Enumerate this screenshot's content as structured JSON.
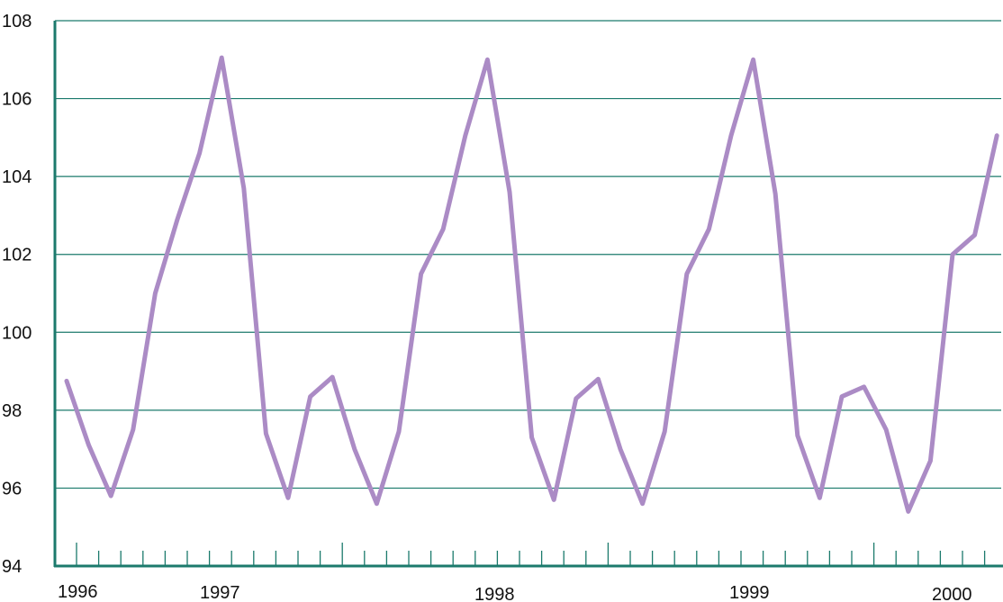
{
  "chart_data": {
    "type": "line",
    "title": "",
    "xlabel": "",
    "ylabel": "",
    "ylim": [
      94,
      108
    ],
    "y_ticks": [
      94,
      96,
      98,
      100,
      102,
      104,
      106,
      108
    ],
    "y_tick_labels": [
      "94",
      "96",
      "98",
      "100",
      "102",
      "104",
      "106",
      "108"
    ],
    "x_start": "1996-01",
    "x_ticks": [
      "1996",
      "1997",
      "1998",
      "1999",
      "2000"
    ],
    "grid": true,
    "line_color": "#ab8bc5",
    "grid_color": "#1b7a6c",
    "series": [
      {
        "values": [
          98.75,
          97.1,
          95.8,
          97.5,
          101.0,
          102.9,
          104.6,
          107.05,
          103.7,
          97.4,
          95.75,
          98.35,
          98.85,
          97.0,
          95.6,
          97.45,
          101.5,
          102.65,
          105.05,
          107.0,
          103.6,
          97.3,
          95.7,
          98.3,
          98.8,
          97.0,
          95.6,
          97.45,
          101.5,
          102.65,
          105.05,
          107.0,
          103.55,
          97.35,
          95.75,
          98.35,
          98.6,
          97.5,
          95.4,
          96.7,
          102.0,
          102.5,
          105.05
        ]
      }
    ]
  }
}
